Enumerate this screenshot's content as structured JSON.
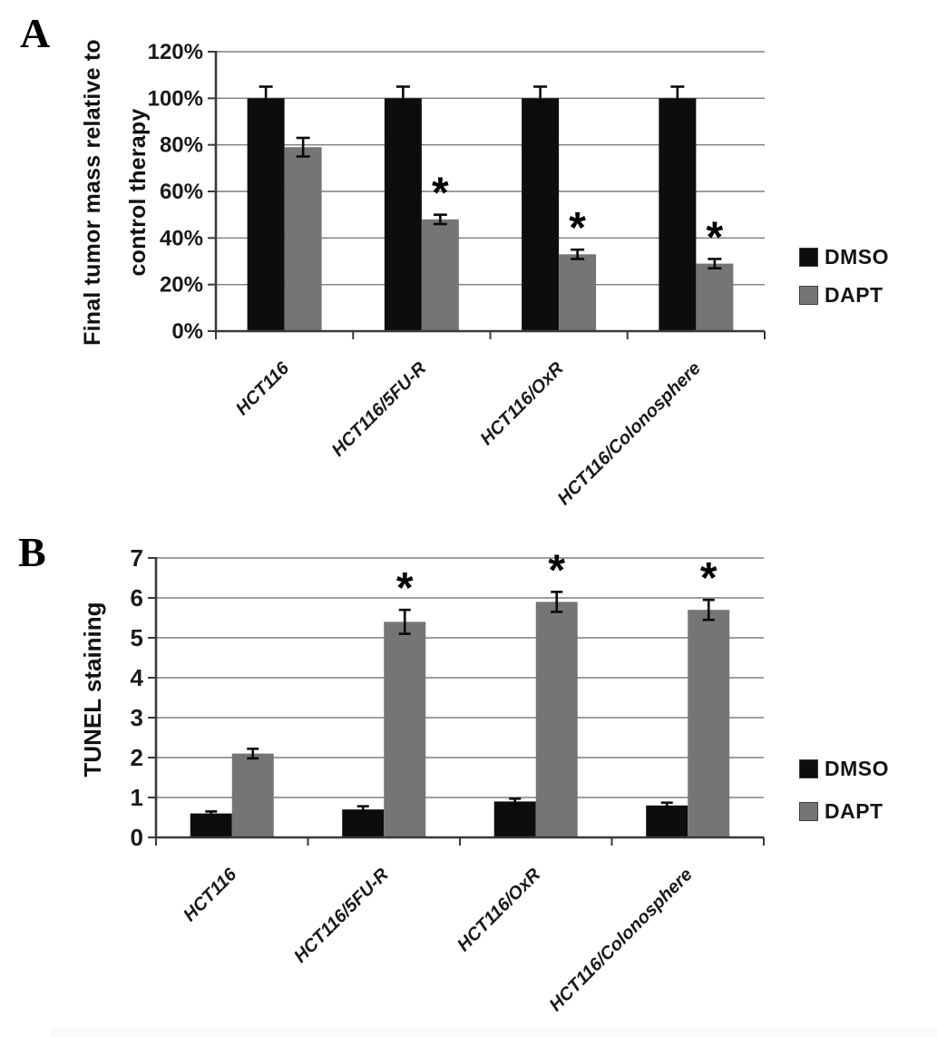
{
  "panels": {
    "a": {
      "letter": "A",
      "ylabel_line1": "Final tumor mass relative to",
      "ylabel_line2": "control therapy"
    },
    "b": {
      "letter": "B",
      "ylabel": "TUNEL staining"
    }
  },
  "colors": {
    "dmso_bar": "#0d0d0d",
    "dapt_bar": "#757575",
    "gridline": "#7e7e7e",
    "axis": "#3a3a3a",
    "error_bar": "#0a0a0a",
    "background": "#ffffff"
  },
  "chart_data": [
    {
      "type": "bar",
      "panel": "A",
      "title": "",
      "xlabel": "",
      "ylabel": "Final tumor mass relative to control therapy",
      "unit": "%",
      "categories": [
        "HCT116",
        "HCT116/5FU-R",
        "HCT116/OxR",
        "HCT116/Colonosphere"
      ],
      "series": [
        {
          "name": "DMSO",
          "color": "#0d0d0d",
          "values": [
            100,
            100,
            100,
            100
          ],
          "errors": [
            5,
            5,
            5,
            5
          ],
          "significant": [
            false,
            false,
            false,
            false
          ]
        },
        {
          "name": "DAPT",
          "color": "#757575",
          "values": [
            79,
            48,
            33,
            29
          ],
          "errors": [
            4,
            2,
            2,
            2
          ],
          "significant": [
            false,
            true,
            true,
            true
          ]
        }
      ],
      "ylim": [
        0,
        120
      ],
      "ytick_values": [
        0,
        20,
        40,
        60,
        80,
        100,
        120
      ],
      "ytick_labels": [
        "0%",
        "20%",
        "40%",
        "60%",
        "80%",
        "100%",
        "120%"
      ],
      "grid": true,
      "legend_position": "right",
      "significance_marker": "*"
    },
    {
      "type": "bar",
      "panel": "B",
      "title": "",
      "xlabel": "",
      "ylabel": "TUNEL staining",
      "unit": "",
      "categories": [
        "HCT116",
        "HCT116/5FU-R",
        "HCT116/OxR",
        "HCT116/Colonosphere"
      ],
      "series": [
        {
          "name": "DMSO",
          "color": "#0d0d0d",
          "values": [
            0.6,
            0.7,
            0.9,
            0.8
          ],
          "errors": [
            0.05,
            0.08,
            0.07,
            0.07
          ],
          "significant": [
            false,
            false,
            false,
            false
          ]
        },
        {
          "name": "DAPT",
          "color": "#757575",
          "values": [
            2.1,
            5.4,
            5.9,
            5.7
          ],
          "errors": [
            0.12,
            0.3,
            0.25,
            0.25
          ],
          "significant": [
            false,
            true,
            true,
            true
          ]
        }
      ],
      "ylim": [
        0,
        7
      ],
      "ytick_values": [
        0,
        1,
        2,
        3,
        4,
        5,
        6,
        7
      ],
      "ytick_labels": [
        "0",
        "1",
        "2",
        "3",
        "4",
        "5",
        "6",
        "7"
      ],
      "grid": true,
      "legend_position": "right",
      "significance_marker": "*"
    }
  ]
}
